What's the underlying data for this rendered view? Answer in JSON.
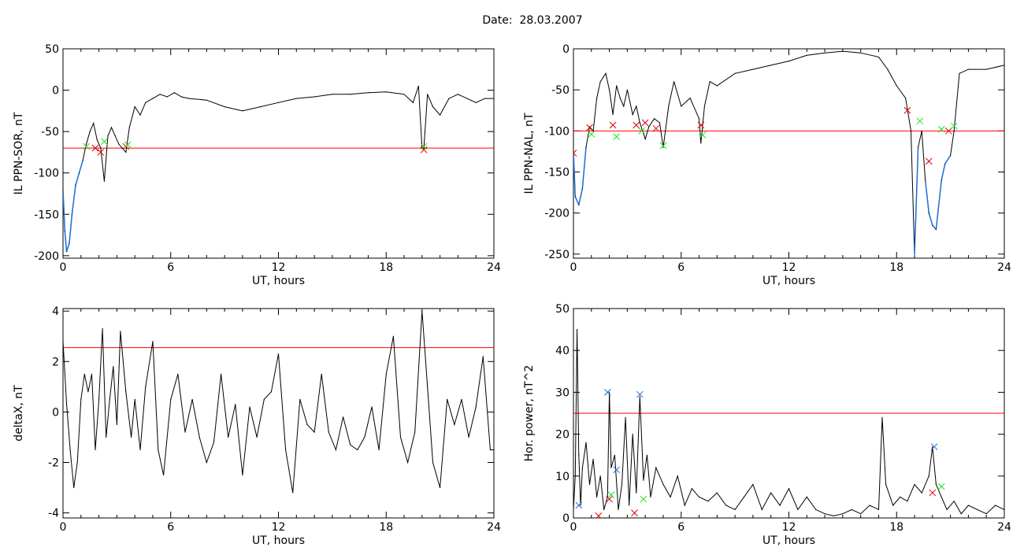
{
  "title": "Date:  28.03.2007",
  "colors": {
    "threshold": "#ff0000",
    "trace": "#000000",
    "trace_dip": "#1e6fd9",
    "mark_red": "#dd0000",
    "mark_green": "#22dd22",
    "mark_blue": "#1e6fd9"
  },
  "chart_data": [
    {
      "id": "p1",
      "type": "line",
      "xlabel": "UT, hours",
      "ylabel": "IL PPN-SOR, nT",
      "xlim": [
        0,
        24
      ],
      "ylim": [
        -203,
        50
      ],
      "xticks": [
        0,
        6,
        12,
        18,
        24
      ],
      "yticks": [
        50,
        0,
        -50,
        -100,
        -150,
        -200
      ],
      "threshold": -70,
      "series": [
        {
          "x": [
            0,
            0.1,
            0.2,
            0.35,
            0.5,
            0.7,
            0.9,
            1.1,
            1.3,
            1.5,
            1.7,
            1.9,
            2.1,
            2.3,
            2.5,
            2.7,
            2.9,
            3.1,
            3.3,
            3.5,
            3.7,
            4.0,
            4.3,
            4.6,
            5.0,
            5.4,
            5.8,
            6.2,
            6.6,
            7.0,
            8.0,
            9.0,
            10.0,
            11.0,
            12.0,
            13.0,
            14.0,
            15.0,
            16.0,
            17.0,
            18.0,
            19.0,
            19.5,
            19.8,
            20.0,
            20.1,
            20.3,
            20.6,
            21.0,
            21.5,
            22.0,
            22.5,
            23.0,
            23.5,
            24.0
          ],
          "y": [
            -120,
            -170,
            -195,
            -185,
            -150,
            -115,
            -100,
            -85,
            -65,
            -50,
            -40,
            -60,
            -70,
            -110,
            -55,
            -45,
            -55,
            -65,
            -70,
            -75,
            -45,
            -20,
            -30,
            -15,
            -10,
            -5,
            -8,
            -3,
            -8,
            -10,
            -12,
            -20,
            -25,
            -20,
            -15,
            -10,
            -8,
            -5,
            -5,
            -3,
            -2,
            -5,
            -15,
            5,
            -70,
            -70,
            -5,
            -20,
            -30,
            -10,
            -5,
            -10,
            -15,
            -10,
            -10
          ]
        }
      ],
      "markers": [
        {
          "color": "mark_red",
          "points": [
            [
              1.8,
              -70
            ],
            [
              2.1,
              -75
            ],
            [
              3.5,
              -68
            ],
            [
              20.1,
              -72
            ]
          ]
        },
        {
          "color": "mark_green",
          "points": [
            [
              1.3,
              -68
            ],
            [
              2.3,
              -62
            ],
            [
              3.6,
              -66
            ],
            [
              20.1,
              -68
            ]
          ]
        }
      ]
    },
    {
      "id": "p2",
      "type": "line",
      "xlabel": "UT, hours",
      "ylabel": "IL PPN-NAL, nT",
      "xlim": [
        0,
        24
      ],
      "ylim": [
        -255,
        0
      ],
      "xticks": [
        0,
        6,
        12,
        18,
        24
      ],
      "yticks": [
        0,
        -50,
        -100,
        -150,
        -200,
        -250
      ],
      "threshold": -100,
      "series": [
        {
          "x": [
            0,
            0.1,
            0.3,
            0.5,
            0.7,
            0.9,
            1.1,
            1.3,
            1.5,
            1.8,
            2.0,
            2.2,
            2.4,
            2.6,
            2.8,
            3.0,
            3.3,
            3.5,
            3.7,
            4.0,
            4.2,
            4.5,
            4.8,
            5.0,
            5.3,
            5.6,
            6.0,
            6.5,
            7.0,
            7.1,
            7.3,
            7.6,
            8.0,
            9.0,
            10.0,
            11.0,
            12.0,
            13.0,
            14.0,
            15.0,
            16.0,
            17.0,
            17.5,
            18.0,
            18.5,
            18.8,
            19.0,
            19.2,
            19.4,
            19.6,
            19.8,
            20.0,
            20.2,
            20.5,
            20.7,
            21.0,
            21.2,
            21.5,
            22.0,
            23.0,
            24.0
          ],
          "y": [
            -125,
            -180,
            -190,
            -170,
            -120,
            -95,
            -100,
            -60,
            -40,
            -30,
            -50,
            -80,
            -45,
            -60,
            -70,
            -50,
            -80,
            -70,
            -90,
            -110,
            -95,
            -85,
            -90,
            -120,
            -70,
            -40,
            -70,
            -60,
            -85,
            -115,
            -70,
            -40,
            -45,
            -30,
            -25,
            -20,
            -15,
            -8,
            -5,
            -3,
            -5,
            -10,
            -25,
            -45,
            -60,
            -100,
            -250,
            -120,
            -100,
            -160,
            -200,
            -215,
            -220,
            -160,
            -140,
            -130,
            -100,
            -30,
            -25,
            -25,
            -20
          ]
        }
      ],
      "markers": [
        {
          "color": "mark_red",
          "points": [
            [
              0,
              -127
            ],
            [
              0.9,
              -96
            ],
            [
              2.2,
              -93
            ],
            [
              3.5,
              -93
            ],
            [
              4.0,
              -90
            ],
            [
              4.6,
              -97
            ],
            [
              7.1,
              -93
            ],
            [
              18.6,
              -75
            ],
            [
              19.8,
              -137
            ],
            [
              20.9,
              -100
            ]
          ]
        },
        {
          "color": "mark_green",
          "points": [
            [
              1.0,
              -104
            ],
            [
              2.4,
              -107
            ],
            [
              3.8,
              -100
            ],
            [
              5.0,
              -118
            ],
            [
              7.2,
              -105
            ],
            [
              19.3,
              -88
            ],
            [
              20.5,
              -98
            ],
            [
              21.2,
              -94
            ]
          ]
        }
      ]
    },
    {
      "id": "p3",
      "type": "line",
      "xlabel": "UT, hours",
      "ylabel": "deltaX, nT",
      "xlim": [
        0,
        24
      ],
      "ylim": [
        -4.2,
        4.1
      ],
      "xticks": [
        0,
        6,
        12,
        18,
        24
      ],
      "yticks": [
        4,
        2,
        0,
        -2,
        -4
      ],
      "threshold": 2.55,
      "series": [
        {
          "x": [
            0,
            0.2,
            0.4,
            0.6,
            0.8,
            1.0,
            1.2,
            1.4,
            1.6,
            1.8,
            2.0,
            2.2,
            2.4,
            2.6,
            2.8,
            3.0,
            3.2,
            3.5,
            3.8,
            4.0,
            4.3,
            4.6,
            5.0,
            5.3,
            5.6,
            6.0,
            6.4,
            6.8,
            7.2,
            7.6,
            8.0,
            8.4,
            8.8,
            9.2,
            9.6,
            10.0,
            10.4,
            10.8,
            11.2,
            11.6,
            12.0,
            12.4,
            12.8,
            13.2,
            13.6,
            14.0,
            14.4,
            14.8,
            15.2,
            15.6,
            16.0,
            16.4,
            16.8,
            17.2,
            17.6,
            18.0,
            18.4,
            18.8,
            19.2,
            19.6,
            20.0,
            20.3,
            20.6,
            21.0,
            21.4,
            21.8,
            22.2,
            22.6,
            23.0,
            23.4,
            23.8,
            24.0
          ],
          "y": [
            2.8,
            0.3,
            -1.5,
            -3.0,
            -2.0,
            0.5,
            1.5,
            0.8,
            1.5,
            -1.5,
            0.5,
            3.3,
            -1.0,
            0.5,
            1.8,
            -0.5,
            3.2,
            0.8,
            -1.0,
            0.5,
            -1.5,
            1.0,
            2.8,
            -1.5,
            -2.5,
            0.5,
            1.5,
            -0.8,
            0.5,
            -1.0,
            -2.0,
            -1.2,
            1.5,
            -1.0,
            0.3,
            -2.5,
            0.2,
            -1.0,
            0.5,
            0.8,
            2.3,
            -1.5,
            -3.2,
            0.5,
            -0.5,
            -0.8,
            1.5,
            -0.8,
            -1.5,
            -0.2,
            -1.3,
            -1.5,
            -1.0,
            0.2,
            -1.5,
            1.5,
            3.0,
            -1.0,
            -2.0,
            -0.8,
            4.0,
            1.0,
            -2.0,
            -3.0,
            0.5,
            -0.5,
            0.5,
            -1.0,
            0.2,
            2.2,
            -1.5,
            -1.5
          ]
        }
      ]
    },
    {
      "id": "p4",
      "type": "line",
      "xlabel": "UT, hours",
      "ylabel": "Hor. power, nT^2",
      "xlim": [
        0,
        24
      ],
      "ylim": [
        0,
        50
      ],
      "xticks": [
        0,
        6,
        12,
        18,
        24
      ],
      "yticks": [
        0,
        10,
        20,
        30,
        40,
        50
      ],
      "threshold": 25,
      "series": [
        {
          "x": [
            0,
            0.1,
            0.2,
            0.3,
            0.4,
            0.5,
            0.7,
            0.9,
            1.1,
            1.3,
            1.5,
            1.7,
            1.9,
            2.0,
            2.1,
            2.3,
            2.5,
            2.7,
            2.9,
            3.1,
            3.3,
            3.5,
            3.7,
            3.9,
            4.1,
            4.3,
            4.6,
            5.0,
            5.4,
            5.8,
            6.2,
            6.6,
            7.0,
            7.5,
            8.0,
            8.5,
            9.0,
            9.5,
            10.0,
            10.5,
            11.0,
            11.5,
            12.0,
            12.5,
            13.0,
            13.5,
            14.0,
            14.5,
            15.0,
            15.5,
            16.0,
            16.5,
            17.0,
            17.2,
            17.4,
            17.8,
            18.2,
            18.6,
            19.0,
            19.4,
            19.8,
            20.0,
            20.2,
            20.5,
            20.8,
            21.2,
            21.6,
            22.0,
            22.5,
            23.0,
            23.5,
            24.0
          ],
          "y": [
            2,
            10,
            45,
            15,
            3,
            12,
            18,
            8,
            14,
            5,
            10,
            2,
            5,
            30,
            12,
            15,
            2,
            8,
            24,
            3,
            20,
            6,
            29,
            9,
            15,
            5,
            12,
            8,
            5,
            10,
            3,
            7,
            5,
            4,
            6,
            3,
            2,
            5,
            8,
            2,
            6,
            3,
            7,
            2,
            5,
            2,
            1,
            0.5,
            1,
            2,
            1,
            3,
            2,
            24,
            8,
            3,
            5,
            4,
            8,
            6,
            10,
            17,
            8,
            5,
            2,
            4,
            1,
            3,
            2,
            1,
            3,
            2
          ]
        }
      ],
      "markers": [
        {
          "color": "mark_blue",
          "points": [
            [
              0.3,
              3
            ],
            [
              1.9,
              30
            ],
            [
              2.4,
              11.5
            ],
            [
              3.7,
              29.5
            ],
            [
              20.1,
              17
            ]
          ]
        },
        {
          "color": "mark_red",
          "points": [
            [
              1.4,
              0.5
            ],
            [
              2.0,
              4.5
            ],
            [
              3.4,
              1.2
            ],
            [
              20.0,
              6
            ]
          ]
        },
        {
          "color": "mark_green",
          "points": [
            [
              2.1,
              5.5
            ],
            [
              3.9,
              4.5
            ],
            [
              20.5,
              7.5
            ]
          ]
        }
      ]
    }
  ]
}
